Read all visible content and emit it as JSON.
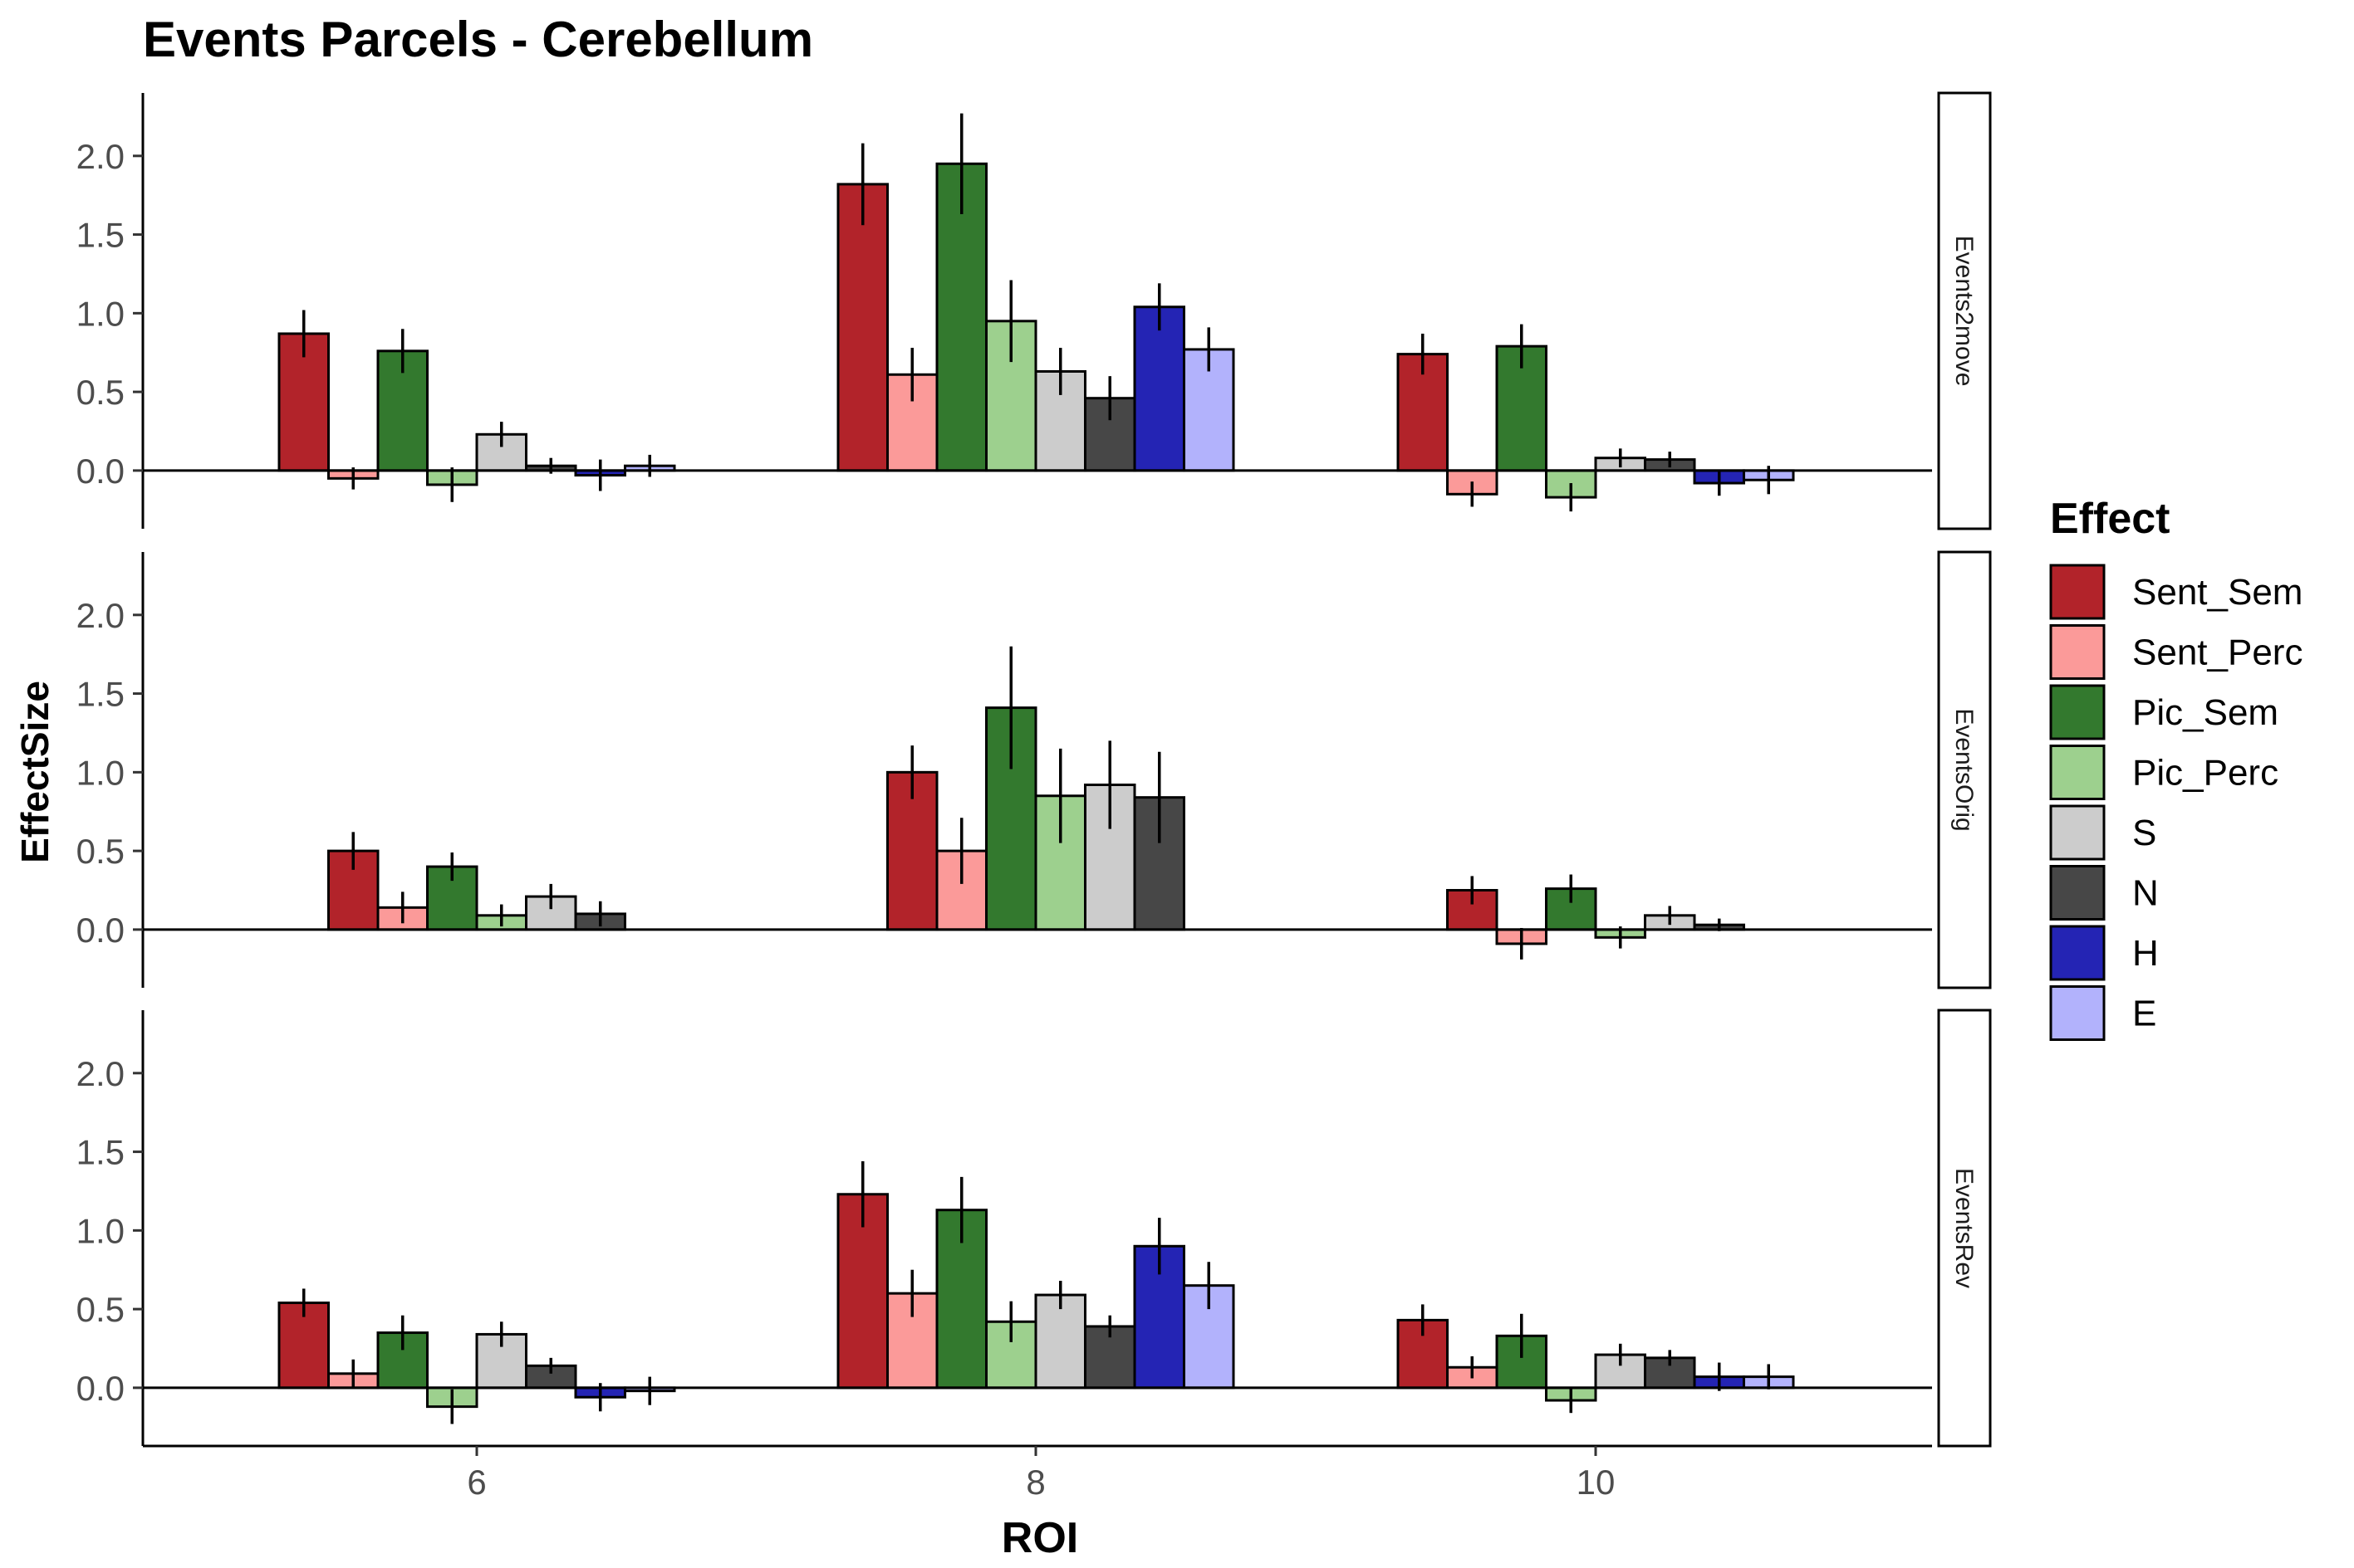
{
  "chart_data": {
    "type": "bar",
    "title": "Events Parcels - Cerebellum",
    "xlabel": "ROI",
    "ylabel": "EffectSize",
    "categories": [
      "6",
      "8",
      "10"
    ],
    "ylim": [
      -0.37,
      2.4
    ],
    "yticks": [
      "0.0",
      "0.5",
      "1.0",
      "1.5",
      "2.0"
    ],
    "legend": {
      "title": "Effect",
      "position": "right",
      "entries": [
        {
          "name": "Sent_Sem",
          "color": "#b2232a"
        },
        {
          "name": "Sent_Perc",
          "color": "#fb9a99"
        },
        {
          "name": "Pic_Sem",
          "color": "#33792e"
        },
        {
          "name": "Pic_Perc",
          "color": "#9dd08e"
        },
        {
          "name": "S",
          "color": "#cccccc"
        },
        {
          "name": "N",
          "color": "#474747"
        },
        {
          "name": "H",
          "color": "#2424b4"
        },
        {
          "name": "E",
          "color": "#b2b2fc"
        }
      ]
    },
    "panels": [
      {
        "name": "Events2move",
        "effects": [
          "Sent_Sem",
          "Sent_Perc",
          "Pic_Sem",
          "Pic_Perc",
          "S",
          "N",
          "H",
          "E"
        ],
        "values": [
          [
            0.87,
            -0.05,
            0.76,
            -0.09,
            0.23,
            0.03,
            -0.03,
            0.03
          ],
          [
            1.82,
            0.61,
            1.95,
            0.95,
            0.63,
            0.46,
            1.04,
            0.77
          ],
          [
            0.74,
            -0.15,
            0.79,
            -0.17,
            0.08,
            0.07,
            -0.08,
            -0.06
          ]
        ],
        "errors": [
          [
            0.15,
            0.07,
            0.14,
            0.11,
            0.08,
            0.05,
            0.1,
            0.07
          ],
          [
            0.26,
            0.17,
            0.32,
            0.26,
            0.15,
            0.14,
            0.15,
            0.14
          ],
          [
            0.13,
            0.08,
            0.14,
            0.09,
            0.06,
            0.05,
            0.08,
            0.09
          ]
        ]
      },
      {
        "name": "EventsOrig",
        "effects": [
          "Sent_Sem",
          "Sent_Perc",
          "Pic_Sem",
          "Pic_Perc",
          "S",
          "N"
        ],
        "values": [
          [
            0.5,
            0.14,
            0.4,
            0.09,
            0.21,
            0.1
          ],
          [
            1.0,
            0.5,
            1.41,
            0.85,
            0.92,
            0.84
          ],
          [
            0.25,
            -0.09,
            0.26,
            -0.05,
            0.09,
            0.03
          ]
        ],
        "errors": [
          [
            0.12,
            0.1,
            0.09,
            0.07,
            0.08,
            0.08
          ],
          [
            0.17,
            0.21,
            0.39,
            0.3,
            0.28,
            0.29
          ],
          [
            0.09,
            0.1,
            0.09,
            0.07,
            0.06,
            0.04
          ]
        ]
      },
      {
        "name": "EventsRev",
        "effects": [
          "Sent_Sem",
          "Sent_Perc",
          "Pic_Sem",
          "Pic_Perc",
          "S",
          "N",
          "H",
          "E"
        ],
        "values": [
          [
            0.54,
            0.09,
            0.35,
            -0.12,
            0.34,
            0.14,
            -0.06,
            -0.02
          ],
          [
            1.23,
            0.6,
            1.13,
            0.42,
            0.59,
            0.39,
            0.9,
            0.65
          ],
          [
            0.43,
            0.13,
            0.33,
            -0.08,
            0.21,
            0.19,
            0.07,
            0.07
          ]
        ],
        "errors": [
          [
            0.09,
            0.09,
            0.11,
            0.11,
            0.08,
            0.05,
            0.09,
            0.09
          ],
          [
            0.21,
            0.15,
            0.21,
            0.13,
            0.09,
            0.07,
            0.18,
            0.15
          ],
          [
            0.1,
            0.07,
            0.14,
            0.08,
            0.07,
            0.05,
            0.09,
            0.08
          ]
        ]
      }
    ]
  }
}
